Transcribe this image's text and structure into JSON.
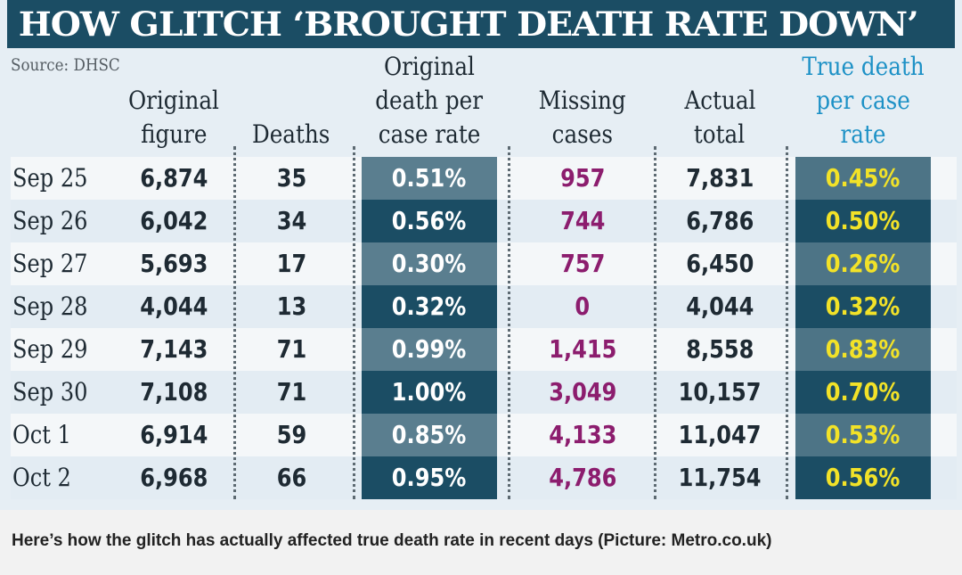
{
  "title": "HOW GLITCH ‘BROUGHT DEATH RATE DOWN’",
  "source": "Source: DHSC",
  "caption": "Here’s how the glitch has actually affected true death rate in recent days (Picture: Metro.co.uk)",
  "colors": {
    "banner": "#1b4d64",
    "accent_header": "#1d91c6",
    "missing_text": "#8c1d6e",
    "true_rate_text": "#f2e228"
  },
  "chart_data": {
    "type": "table",
    "title": "HOW GLITCH ‘BROUGHT DEATH RATE DOWN’",
    "columns": [
      {
        "key": "date",
        "lines": [
          ""
        ]
      },
      {
        "key": "original",
        "lines": [
          "Original",
          "figure"
        ]
      },
      {
        "key": "deaths",
        "lines": [
          "Deaths"
        ]
      },
      {
        "key": "orig_rate",
        "lines": [
          "Original",
          "death per",
          "case rate"
        ]
      },
      {
        "key": "missing",
        "lines": [
          "Missing",
          "cases"
        ]
      },
      {
        "key": "actual",
        "lines": [
          "Actual",
          "total"
        ]
      },
      {
        "key": "true_rate",
        "lines": [
          "True death",
          "per case",
          "rate"
        ]
      }
    ],
    "rows": [
      {
        "date": "Sep 25",
        "original": "6,874",
        "deaths": "35",
        "orig_rate": "0.51%",
        "missing": "957",
        "actual": "7,831",
        "true_rate": "0.45%"
      },
      {
        "date": "Sep 26",
        "original": "6,042",
        "deaths": "34",
        "orig_rate": "0.56%",
        "missing": "744",
        "actual": "6,786",
        "true_rate": "0.50%"
      },
      {
        "date": "Sep 27",
        "original": "5,693",
        "deaths": "17",
        "orig_rate": "0.30%",
        "missing": "757",
        "actual": "6,450",
        "true_rate": "0.26%"
      },
      {
        "date": "Sep 28",
        "original": "4,044",
        "deaths": "13",
        "orig_rate": "0.32%",
        "missing": "0",
        "actual": "4,044",
        "true_rate": "0.32%"
      },
      {
        "date": "Sep 29",
        "original": "7,143",
        "deaths": "71",
        "orig_rate": "0.99%",
        "missing": "1,415",
        "actual": "8,558",
        "true_rate": "0.83%"
      },
      {
        "date": "Sep 30",
        "original": "7,108",
        "deaths": "71",
        "orig_rate": "1.00%",
        "missing": "3,049",
        "actual": "10,157",
        "true_rate": "0.70%"
      },
      {
        "date": "Oct 1",
        "original": "6,914",
        "deaths": "59",
        "orig_rate": "0.85%",
        "missing": "4,133",
        "actual": "11,047",
        "true_rate": "0.53%"
      },
      {
        "date": "Oct 2",
        "original": "6,968",
        "deaths": "66",
        "orig_rate": "0.95%",
        "missing": "4,786",
        "actual": "11,754",
        "true_rate": "0.56%"
      }
    ]
  }
}
